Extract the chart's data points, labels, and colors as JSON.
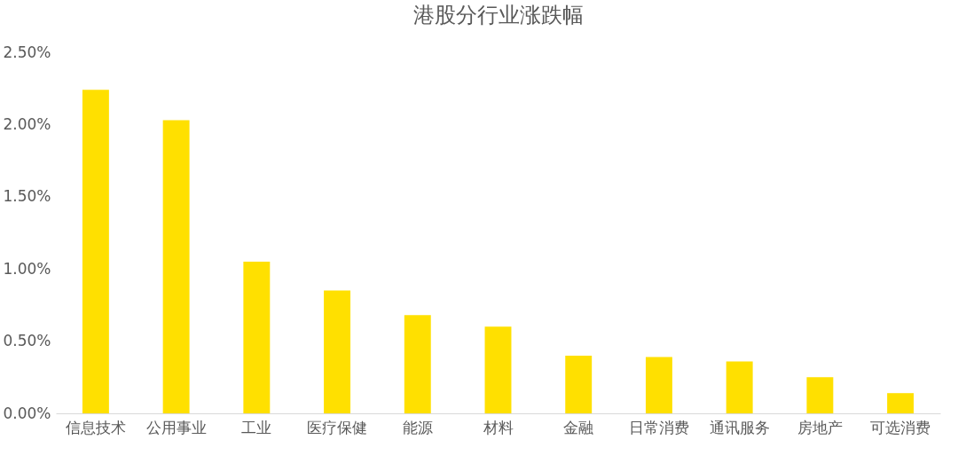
{
  "chart_data": {
    "type": "bar",
    "title": "港股分行业涨跌幅",
    "categories": [
      "信息技术",
      "公用事业",
      "工业",
      "医疗保健",
      "能源",
      "材料",
      "金融",
      "日常消费",
      "通讯服务",
      "房地产",
      "可选消费"
    ],
    "values": [
      2.24,
      2.03,
      1.05,
      0.85,
      0.68,
      0.6,
      0.4,
      0.39,
      0.36,
      0.25,
      0.14
    ],
    "color": "#ffe000",
    "ylim": [
      0,
      2.5
    ],
    "yticks": [
      {
        "value": 0,
        "label": "0.00%"
      },
      {
        "value": 0.5,
        "label": "0.50%"
      },
      {
        "value": 1,
        "label": "1.00%"
      },
      {
        "value": 1.5,
        "label": "1.50%"
      },
      {
        "value": 2,
        "label": "2.00%"
      },
      {
        "value": 2.5,
        "label": "2.50%"
      }
    ],
    "grid": false
  }
}
